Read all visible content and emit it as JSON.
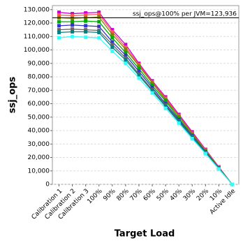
{
  "chart_data": {
    "type": "line",
    "y_label": "ssj_ops",
    "x_label": "Target Load",
    "categories": [
      "Calibration 1",
      "Calibration 2",
      "Calibration 3",
      "100%",
      "90%",
      "80%",
      "70%",
      "60%",
      "50%",
      "40%",
      "30%",
      "20%",
      "10%",
      "Active Idle"
    ],
    "series": [
      {
        "color": "#cc00cc",
        "values": [
          128000,
          127000,
          127500,
          128000,
          115000,
          104000,
          90000,
          77000,
          65000,
          52000,
          39000,
          26000,
          13000,
          0
        ]
      },
      {
        "color": "#ff5555",
        "values": [
          126000,
          125500,
          126000,
          126500,
          113500,
          102000,
          89000,
          76000,
          64000,
          51000,
          38000,
          25500,
          12800,
          0
        ]
      },
      {
        "color": "#808000",
        "values": [
          124000,
          123500,
          124000,
          124500,
          111500,
          100500,
          88000,
          75500,
          63000,
          50500,
          37500,
          25000,
          12500,
          0
        ]
      },
      {
        "color": "#00aa00",
        "values": [
          121000,
          121000,
          121500,
          121000,
          109000,
          98000,
          86000,
          73500,
          62000,
          49000,
          36500,
          24500,
          12200,
          0
        ]
      },
      {
        "color": "#3333cc",
        "values": [
          118000,
          118500,
          118000,
          117500,
          106000,
          96000,
          84000,
          72000,
          60000,
          48000,
          36000,
          24000,
          12000,
          0
        ]
      },
      {
        "color": "#666666",
        "values": [
          115000,
          115500,
          115000,
          114500,
          104000,
          94000,
          82000,
          70500,
          59000,
          47000,
          35500,
          23500,
          11800,
          0
        ]
      },
      {
        "color": "#008080",
        "values": [
          113000,
          113500,
          113500,
          113000,
          102000,
          92500,
          81000,
          69500,
          58000,
          46500,
          35000,
          23200,
          11600,
          0
        ]
      },
      {
        "color": "#33ffff",
        "values": [
          109000,
          110000,
          109500,
          109000,
          99000,
          90000,
          79000,
          68000,
          56500,
          45500,
          34000,
          22800,
          11400,
          0
        ]
      }
    ],
    "ref_line": {
      "value": 123936,
      "label": "ssj_ops@100% per JVM=123,936"
    },
    "ylim": [
      0,
      133000
    ],
    "yticks": [
      0,
      {
        "value": 10000,
        "label": "10,000"
      },
      {
        "value": 20000,
        "label": "20,000"
      },
      {
        "value": 30000,
        "label": "30,000"
      },
      {
        "value": 40000,
        "label": "40,000"
      },
      {
        "value": 50000,
        "label": "50,000"
      },
      {
        "value": 60000,
        "label": "60,000"
      },
      {
        "value": 70000,
        "label": "70,000"
      },
      {
        "value": 80000,
        "label": "80,000"
      },
      {
        "value": 90000,
        "label": "90,000"
      },
      {
        "value": 100000,
        "label": "100,000"
      },
      {
        "value": 110000,
        "label": "110,000"
      },
      {
        "value": 120000,
        "label": "120,000"
      },
      {
        "value": 130000,
        "label": "130,000"
      }
    ],
    "grid": true
  }
}
